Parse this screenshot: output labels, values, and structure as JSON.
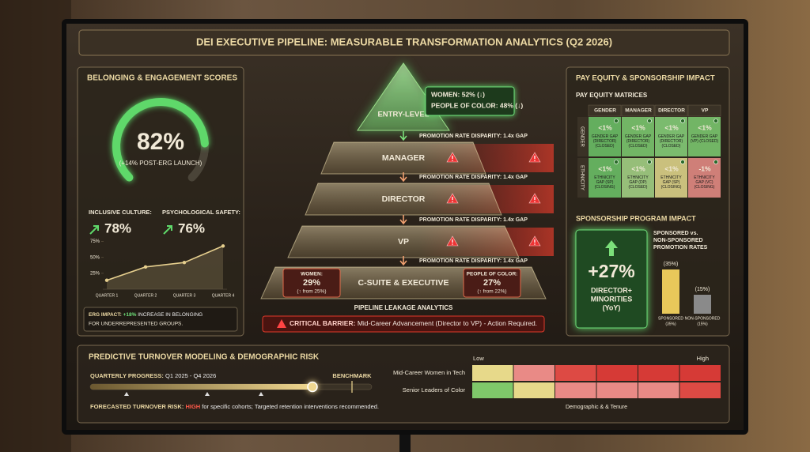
{
  "header": {
    "title": "DEI EXECUTIVE PIPELINE: MEASURABLE TRANSFORMATION ANALYTICS (Q2 2026)"
  },
  "belonging": {
    "title": "BELONGING & ENGAGEMENT SCORES",
    "metrics": [
      {
        "label": "INCLUSIVE CULTURE:",
        "value": "78%"
      },
      {
        "label": "PSYCHOLOGICAL SAFETY:",
        "value": "76%"
      }
    ],
    "erg_impact": {
      "label": "ERG IMPACT:",
      "highlight": "+18%",
      "text": "INCREASE IN BELONGING",
      "text2": "FOR UNDERREPRESENTED GROUPS."
    }
  },
  "pipeline": {
    "levels": [
      "ENTRY-LEVEL",
      "MANAGER",
      "DIRECTOR",
      "VP",
      "C-SUITE & EXECUTIVE"
    ],
    "disparities": [
      "PROMOTION RATE DISPARITY: 1.4x GAP",
      "PROMOTION RATE DISPARITY: 1.4x GAP",
      "PROMOTION RATE DISPARITY: 1.4x GAP",
      "PROMOTION RATE DISPARITY: 1.4x GAP"
    ],
    "entry_callout": [
      "WOMEN: 52% (↓)",
      "PEOPLE OF COLOR: 48% (↓)"
    ],
    "csuite_callouts": [
      {
        "label": "WOMEN:",
        "value": "29%",
        "change": "(↑ from 25%)"
      },
      {
        "label": "PEOPLE OF COLOR:",
        "value": "27%",
        "change": "(↑ from 22%)"
      }
    ],
    "leakage_title": "PIPELINE LEAKAGE ANALYTICS",
    "barrier": {
      "label": "CRITICAL BARRIER:",
      "text": "Mid-Career Advancement (Director to VP) - Action Required."
    }
  },
  "pay_equity": {
    "title": "PAY EQUITY & SPONSORSHIP IMPACT",
    "subtitle": "PAY EQUITY MATRICES",
    "columns": [
      "GENDER",
      "MANAGER",
      "DIRECTOR",
      "VP"
    ],
    "rows": [
      {
        "label": "GENDER",
        "cells": [
          {
            "value": "<1%",
            "note": "GENDER GAP (DIRECTOR) (CLOSED)",
            "color": "#6fc76a"
          },
          {
            "value": "<1%",
            "note": "GENDER GAP (DIRECTOR) (CLOSED)",
            "color": "#7fcf72"
          },
          {
            "value": "<1%",
            "note": "GENDER GAP (DIRECTOR) (CLOSED)",
            "color": "#8ad67c"
          },
          {
            "value": "<1%",
            "note": "GENDER GAP (VP) (CLOSED)",
            "color": "#7fcf72"
          }
        ]
      },
      {
        "label": "ETHNICITY",
        "cells": [
          {
            "value": "<1%",
            "note": "ETHNICITY GAP (SP) (CLOSING)",
            "color": "#6fc76a"
          },
          {
            "value": "<1%",
            "note": "ETHNICITY GAP (DP) (CLOSED)",
            "color": "#a9d98a"
          },
          {
            "value": "<1%",
            "note": "ETHNICITY GAP (SP) (CLOSING)",
            "color": "#e6dc8e"
          },
          {
            "value": "-1%",
            "note": "ETHNICITY GAP (VC) (CLOSING)",
            "color": "#ec8f88"
          }
        ]
      }
    ]
  },
  "sponsorship": {
    "title": "SPONSORSHIP PROGRAM IMPACT",
    "value": "+27%",
    "label_lines": [
      "DIRECTOR+",
      "MINORITIES",
      "(YoY)"
    ],
    "chart_heading": [
      "SPONSORED vs.",
      "NON-SPONSORED",
      "PROMOTION RATES"
    ]
  },
  "turnover": {
    "title": "PREDICTIVE TURNOVER MODELING & DEMOGRAPHIC RISK",
    "progress_label": "QUARTERLY PROGRESS:",
    "progress_range": "Q1 2025 - Q4 2026",
    "benchmark": "BENCHMARK",
    "forecast": {
      "label": "FORECASTED TURNOVER RISK:",
      "level": "HIGH",
      "text": "for specific cohorts; Targeted retention interventions recommended."
    },
    "heatmap": {
      "low": "Low",
      "high": "High",
      "x_label": "Demographic & & Tenure",
      "rows": [
        {
          "label": "Mid-Career Women in Tech",
          "colors": [
            "#e7d98a",
            "#e98a86",
            "#dd4a44",
            "#d63a36",
            "#d63a36",
            "#d63a36"
          ]
        },
        {
          "label": "Senior Leaders of Color",
          "colors": [
            "#7fc86a",
            "#e7d98a",
            "#e98a86",
            "#e98a86",
            "#e98a86",
            "#dd4a44"
          ]
        }
      ]
    }
  },
  "chart_data": [
    {
      "type": "gauge",
      "values": [
        82
      ],
      "value_labels": [
        "82%"
      ],
      "annotation": "(+14% POST-ERG LAUNCH)",
      "color": "#5fd86a"
    },
    {
      "type": "line",
      "categories": [
        "QUARTER 1",
        "QUARTER 2",
        "QUARTER 3",
        "QUARTER 4"
      ],
      "values": [
        14,
        35,
        42,
        68
      ],
      "ylim": [
        0,
        82
      ],
      "yticks": [
        {
          "value": 25,
          "label": "25%"
        },
        {
          "value": 50,
          "label": "50%"
        },
        {
          "value": 75,
          "label": "75%"
        }
      ],
      "grid": false,
      "color": "#e6cf8e"
    },
    {
      "type": "bar",
      "categories": [
        "SPONSORED",
        "NON-SPONSORED"
      ],
      "values": [
        35,
        15
      ],
      "value_labels": [
        "(35%)",
        "(15%)"
      ],
      "colors": [
        "#e8c85a",
        "#8a8a8a"
      ]
    }
  ]
}
